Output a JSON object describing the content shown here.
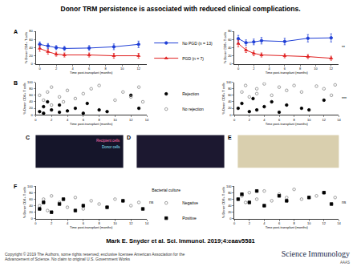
{
  "header": {
    "title": "Donor TRM persistence is associated with reduced clinical complications."
  },
  "chart_data": [
    {
      "type": "line",
      "panel": "A",
      "x_label": "Time post-transplant (months)",
      "y_label": "% Donor CD4+ T cells",
      "x": [
        0,
        1,
        2,
        3,
        6,
        9,
        12
      ],
      "xlim": [
        -0.5,
        13
      ],
      "xticks": [
        0,
        2,
        4,
        6,
        8,
        10,
        12
      ],
      "ylim": [
        0,
        80
      ],
      "yticks": [
        0,
        20,
        40,
        60,
        80
      ],
      "legend": "right",
      "series": [
        {
          "name": "No PGD (n = 13)",
          "color": "#1f3fd6",
          "marker": "circle",
          "values": [
            48,
            44,
            40,
            38,
            39,
            42,
            48
          ],
          "error": [
            6,
            6,
            5,
            5,
            6,
            7,
            8
          ]
        },
        {
          "name": "PGD (n = 7)",
          "color": "#e02020",
          "marker": "triangle-up",
          "values": [
            38,
            30,
            24,
            22,
            22,
            20,
            20
          ],
          "error": [
            7,
            6,
            5,
            5,
            5,
            6,
            6
          ]
        }
      ]
    },
    {
      "type": "line",
      "x_label": "Time post-transplant (months)",
      "y_label": "% Donor CD8+ T cells",
      "x": [
        0,
        1,
        2,
        3,
        6,
        9,
        12
      ],
      "xlim": [
        -0.5,
        13
      ],
      "xticks": [
        0,
        2,
        4,
        6,
        8,
        10,
        12
      ],
      "ylim": [
        0,
        80
      ],
      "yticks": [
        0,
        20,
        40,
        60,
        80
      ],
      "annotations": [
        "**"
      ],
      "series": [
        {
          "color": "#1f3fd6",
          "marker": "circle",
          "values": [
            62,
            52,
            54,
            57,
            55,
            63,
            64
          ],
          "error": [
            8,
            7,
            7,
            8,
            8,
            9,
            10
          ]
        },
        {
          "color": "#e02020",
          "marker": "triangle-up",
          "values": [
            50,
            34,
            26,
            22,
            20,
            18,
            14
          ],
          "error": [
            8,
            6,
            6,
            5,
            5,
            5,
            5
          ]
        }
      ]
    },
    {
      "type": "scatter",
      "panel": "B",
      "x_label": "Time post-transplant (months)",
      "y_label": "% Donor CD4+ T cells",
      "xlim": [
        0,
        14
      ],
      "xticks": [
        0,
        2,
        4,
        6,
        8,
        10,
        12,
        14
      ],
      "ylim": [
        0,
        100
      ],
      "yticks": [
        0,
        20,
        40,
        60,
        80,
        100
      ],
      "legend": "right",
      "series": [
        {
          "name": "Rejection",
          "color": "#000000",
          "marker": "circle",
          "x": [
            0.5,
            1,
            1,
            1.5,
            2,
            3,
            3,
            4,
            5,
            6,
            6.5,
            8,
            9,
            12,
            13
          ],
          "values": [
            10,
            25,
            5,
            40,
            15,
            8,
            30,
            12,
            20,
            5,
            35,
            15,
            10,
            60,
            20
          ]
        },
        {
          "name": "No rejection",
          "color": "#888888",
          "marker": "circle-open",
          "x": [
            0.5,
            1,
            1.5,
            2,
            2,
            3,
            3.5,
            4,
            5,
            6,
            7,
            8,
            10,
            11,
            12,
            13,
            13.5
          ],
          "values": [
            60,
            45,
            70,
            30,
            85,
            55,
            40,
            75,
            50,
            65,
            80,
            90,
            45,
            70,
            55,
            85,
            40
          ]
        }
      ]
    },
    {
      "type": "scatter",
      "x_label": "Time post-transplant (months)",
      "y_label": "% Donor CD8+ T cells",
      "xlim": [
        0,
        14
      ],
      "xticks": [
        0,
        2,
        4,
        6,
        8,
        10,
        12,
        14
      ],
      "ylim": [
        0,
        100
      ],
      "yticks": [
        0,
        20,
        40,
        60,
        80,
        100
      ],
      "annotations": [
        "***"
      ],
      "series": [
        {
          "color": "#000000",
          "marker": "circle",
          "x": [
            0.5,
            1,
            2,
            2.5,
            3,
            4,
            5,
            6,
            7,
            9,
            10,
            12
          ],
          "values": [
            20,
            35,
            10,
            50,
            15,
            25,
            40,
            8,
            30,
            20,
            15,
            45
          ]
        },
        {
          "color": "#888888",
          "marker": "circle-open",
          "x": [
            1,
            1.5,
            2,
            3,
            3,
            4,
            5,
            6,
            7,
            8,
            9,
            11,
            12,
            13,
            13.5
          ],
          "values": [
            70,
            90,
            55,
            80,
            65,
            95,
            60,
            85,
            75,
            90,
            70,
            88,
            80,
            60,
            92
          ]
        }
      ]
    },
    {
      "type": "scatter",
      "panel": "F",
      "x_label": "Time post-transplant (months)",
      "y_label": "% Donor CD4+ T cells",
      "xlim": [
        0,
        14
      ],
      "xticks": [
        0,
        2,
        4,
        6,
        8,
        10,
        12,
        14
      ],
      "ylim": [
        0,
        100
      ],
      "yticks": [
        0,
        20,
        40,
        60,
        80,
        100
      ],
      "legend": "right",
      "legend_title": "Bacterial culture",
      "annotations": [
        "ns"
      ],
      "series": [
        {
          "name": "Negative",
          "color": "#888888",
          "marker": "circle-open",
          "x": [
            0.5,
            1,
            1.5,
            2,
            3,
            4,
            5,
            6,
            7,
            8,
            10,
            12,
            13
          ],
          "values": [
            40,
            60,
            25,
            70,
            50,
            35,
            65,
            30,
            55,
            45,
            60,
            40,
            50
          ]
        },
        {
          "name": "Positive",
          "color": "#000000",
          "marker": "square",
          "x": [
            0.5,
            1,
            2,
            3,
            3.5,
            5,
            6,
            9,
            11,
            13.5
          ],
          "values": [
            30,
            50,
            20,
            45,
            60,
            25,
            40,
            35,
            55,
            30
          ]
        }
      ]
    },
    {
      "type": "scatter",
      "x_label": "Time post-transplant (months)",
      "y_label": "% Donor CD8+ T cells",
      "xlim": [
        0,
        14
      ],
      "xticks": [
        0,
        2,
        4,
        6,
        8,
        10,
        12,
        14
      ],
      "ylim": [
        0,
        100
      ],
      "yticks": [
        0,
        20,
        40,
        60,
        80,
        100
      ],
      "annotations": [
        "ns"
      ],
      "series": [
        {
          "color": "#888888",
          "marker": "circle-open",
          "x": [
            1,
            1.5,
            2,
            3,
            4,
            5,
            6,
            7,
            8,
            9,
            11,
            12,
            13.5
          ],
          "values": [
            70,
            50,
            80,
            60,
            85,
            55,
            75,
            65,
            90,
            60,
            70,
            80,
            65
          ]
        },
        {
          "color": "#000000",
          "marker": "square",
          "x": [
            0.5,
            1,
            2,
            3,
            4,
            6,
            7,
            10,
            12,
            13
          ],
          "values": [
            60,
            75,
            50,
            85,
            40,
            70,
            55,
            65,
            80,
            45
          ]
        }
      ]
    }
  ],
  "image_panels": [
    {
      "panel": "C",
      "labels": [
        "Recipient cells",
        "Donor cells"
      ]
    },
    {
      "panel": "D"
    },
    {
      "panel": "E"
    }
  ],
  "footer": {
    "citation": "Mark E. Snyder et al. Sci. Immunol. 2019;4:eaav5581",
    "copyright": "Copyright © 2019 The Authors, some rights reserved; exclusive licensee American Association for the Advancement of Science. No claim to original U.S. Government Works",
    "logo": "Science Immunology",
    "publisher": "AAAS"
  }
}
